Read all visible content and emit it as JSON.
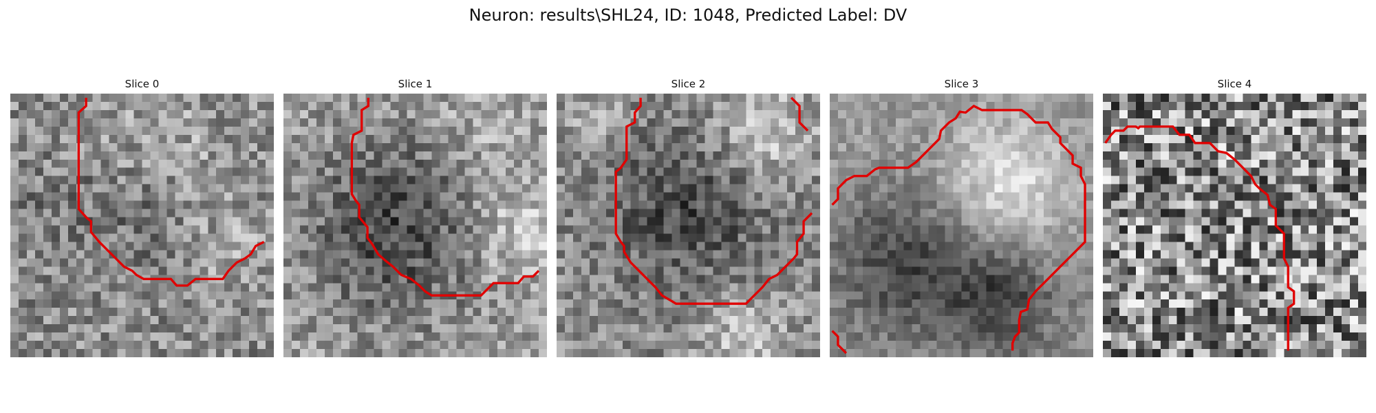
{
  "figure": {
    "title": "Neuron: results\\SHL24, ID: 1048, Predicted Label: DV"
  },
  "slices": [
    {
      "title": "Slice 0",
      "contour_color": "#e00000",
      "seed": 11
    },
    {
      "title": "Slice 1",
      "contour_color": "#e00000",
      "seed": 23
    },
    {
      "title": "Slice 2",
      "contour_color": "#e00000",
      "seed": 37
    },
    {
      "title": "Slice 3",
      "contour_color": "#e00000",
      "seed": 51
    },
    {
      "title": "Slice 4",
      "contour_color": "#e00000",
      "seed": 67
    }
  ]
}
